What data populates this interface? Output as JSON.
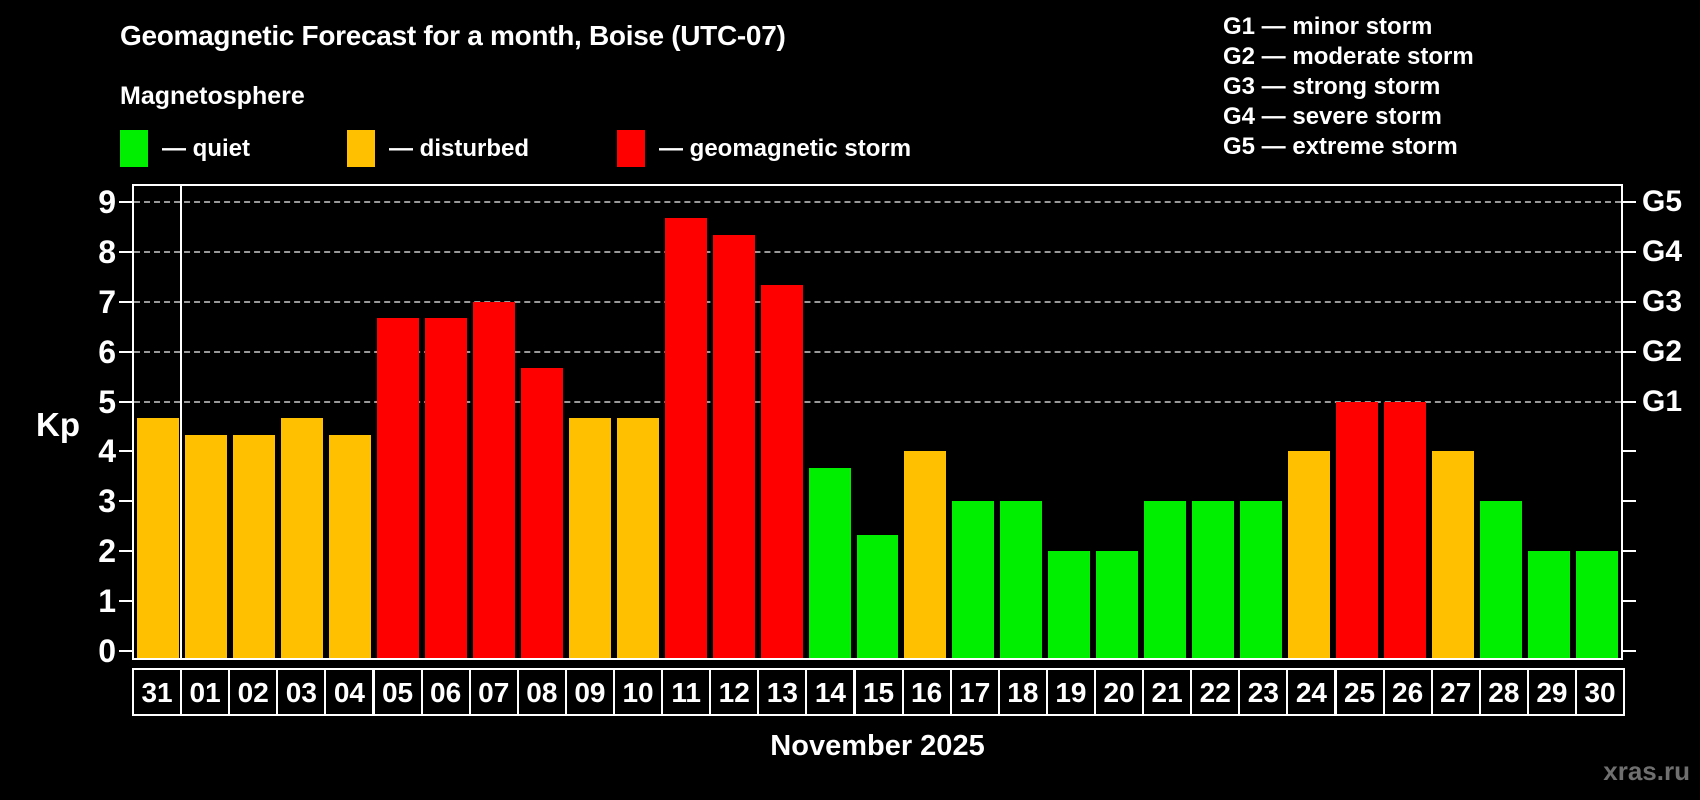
{
  "header": {
    "title": "Geomagnetic Forecast for a month, Boise (UTC-07)",
    "subtitle": "Magnetosphere"
  },
  "legend": {
    "items": [
      {
        "key": "quiet",
        "label": "— quiet"
      },
      {
        "key": "disturbed",
        "label": "— disturbed"
      },
      {
        "key": "storm",
        "label": "— geomagnetic storm"
      }
    ]
  },
  "g_legend": {
    "lines": [
      "G1 — minor storm",
      "G2 — moderate storm",
      "G3 — strong storm",
      "G4 — severe storm",
      "G5 — extreme storm"
    ]
  },
  "axes": {
    "y_label": "Kp",
    "y_ticks": [
      "0",
      "1",
      "2",
      "3",
      "4",
      "5",
      "6",
      "7",
      "8",
      "9"
    ]
  },
  "footer": {
    "month_label": "November 2025",
    "watermark": "xras.ru"
  },
  "chart_data": {
    "type": "bar",
    "title": "Geomagnetic Forecast for a month, Boise (UTC-07)",
    "ylabel": "Kp",
    "xlabel": "November 2025",
    "ylim": [
      0,
      9.4
    ],
    "grid": "dashed horizontal at Kp 5-9",
    "legend_position": "top-left",
    "categories": [
      "31",
      "01",
      "02",
      "03",
      "04",
      "05",
      "06",
      "07",
      "08",
      "09",
      "10",
      "11",
      "12",
      "13",
      "14",
      "15",
      "16",
      "17",
      "18",
      "19",
      "20",
      "21",
      "22",
      "23",
      "24",
      "25",
      "26",
      "27",
      "28",
      "29",
      "30"
    ],
    "values": [
      4.67,
      4.33,
      4.33,
      4.67,
      4.33,
      6.67,
      6.67,
      7.0,
      5.67,
      4.67,
      4.67,
      8.67,
      8.33,
      7.33,
      3.67,
      2.33,
      4.0,
      3.0,
      3.0,
      2.0,
      2.0,
      3.0,
      3.0,
      3.0,
      4.0,
      5.0,
      5.0,
      4.0,
      3.0,
      2.0,
      2.0
    ],
    "status": [
      "disturbed",
      "disturbed",
      "disturbed",
      "disturbed",
      "disturbed",
      "storm",
      "storm",
      "storm",
      "storm",
      "disturbed",
      "disturbed",
      "storm",
      "storm",
      "storm",
      "quiet",
      "quiet",
      "disturbed",
      "quiet",
      "quiet",
      "quiet",
      "quiet",
      "quiet",
      "quiet",
      "quiet",
      "disturbed",
      "storm",
      "storm",
      "disturbed",
      "quiet",
      "quiet",
      "quiet"
    ],
    "colors": {
      "quiet": "#00ee00",
      "disturbed": "#ffc000",
      "storm": "#ff0000"
    },
    "gridlines_kp": [
      5,
      6,
      7,
      8,
      9
    ],
    "right_axis_labels": [
      {
        "label": "G1",
        "kp": 5
      },
      {
        "label": "G2",
        "kp": 6
      },
      {
        "label": "G3",
        "kp": 7
      },
      {
        "label": "G4",
        "kp": 8
      },
      {
        "label": "G5",
        "kp": 9
      }
    ],
    "month_separator_after_category": "31"
  }
}
